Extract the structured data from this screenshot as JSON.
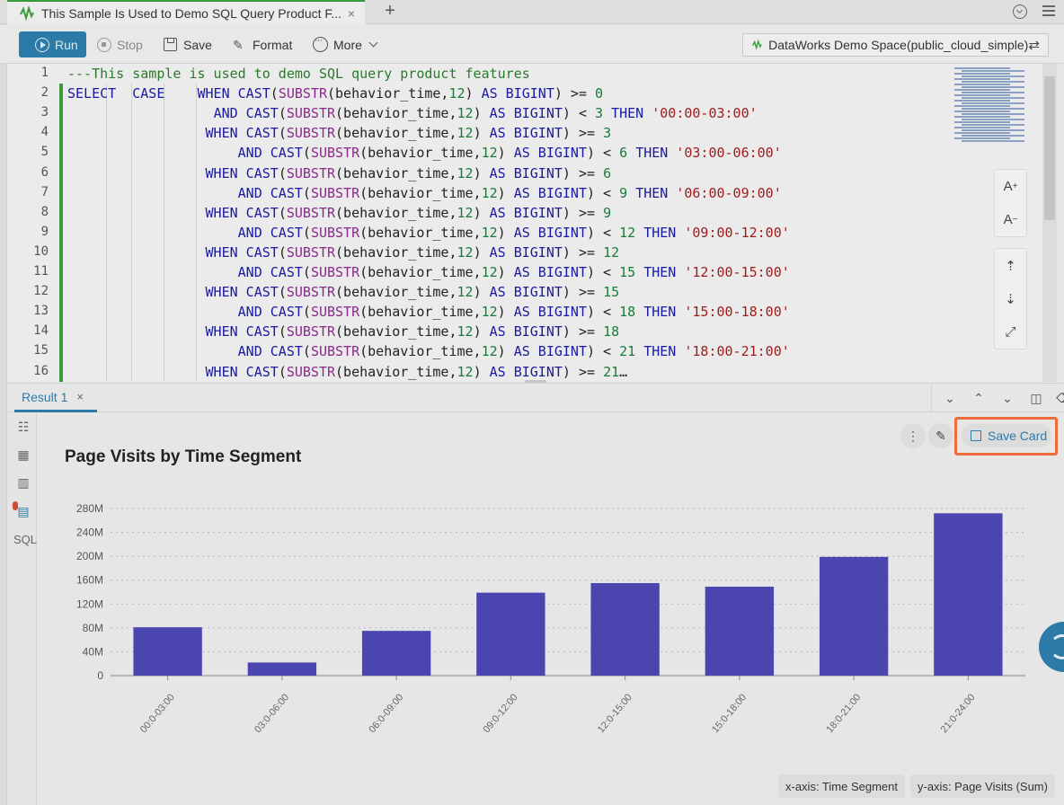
{
  "tab": {
    "title": "This Sample Is Used to Demo SQL Query Product F...",
    "close": "×",
    "add": "+"
  },
  "toolbar": {
    "run": "Run",
    "stop": "Stop",
    "save": "Save",
    "format": "Format",
    "more": "More",
    "workspace": "DataWorks Demo Space(public_cloud_simple)",
    "switch_icon": "⇄"
  },
  "editor": {
    "lines": [
      {
        "n": "1",
        "parts": [
          [
            "cm",
            "---This sample is used to demo SQL query product features"
          ]
        ]
      },
      {
        "n": "2",
        "parts": [
          [
            "kw",
            "SELECT"
          ],
          [
            "",
            "  "
          ],
          [
            "kw",
            "CASE"
          ],
          [
            "",
            "    "
          ],
          [
            "kw",
            "WHEN CAST"
          ],
          [
            "",
            "("
          ],
          [
            "fn",
            "SUBSTR"
          ],
          [
            "",
            "(behavior_time,"
          ],
          [
            "num",
            "12"
          ],
          [
            "",
            ") "
          ],
          [
            "kw",
            "AS BIGINT"
          ],
          [
            "",
            ") >= "
          ],
          [
            "num",
            "0"
          ]
        ]
      },
      {
        "n": "3",
        "parts": [
          [
            "",
            "                  "
          ],
          [
            "kw",
            "AND CAST"
          ],
          [
            "",
            "("
          ],
          [
            "fn",
            "SUBSTR"
          ],
          [
            "",
            "(behavior_time,"
          ],
          [
            "num",
            "12"
          ],
          [
            "",
            ") "
          ],
          [
            "kw",
            "AS BIGINT"
          ],
          [
            "",
            ") < "
          ],
          [
            "num",
            "3"
          ],
          [
            "",
            " "
          ],
          [
            "kw",
            "THEN"
          ],
          [
            "",
            " "
          ],
          [
            "str",
            "'00:00-03:00'"
          ]
        ]
      },
      {
        "n": "4",
        "parts": [
          [
            "",
            "                 "
          ],
          [
            "kw",
            "WHEN CAST"
          ],
          [
            "",
            "("
          ],
          [
            "fn",
            "SUBSTR"
          ],
          [
            "",
            "(behavior_time,"
          ],
          [
            "num",
            "12"
          ],
          [
            "",
            ") "
          ],
          [
            "kw",
            "AS BIGINT"
          ],
          [
            "",
            ") >= "
          ],
          [
            "num",
            "3"
          ]
        ]
      },
      {
        "n": "5",
        "parts": [
          [
            "",
            "                     "
          ],
          [
            "kw",
            "AND CAST"
          ],
          [
            "",
            "("
          ],
          [
            "fn",
            "SUBSTR"
          ],
          [
            "",
            "(behavior_time,"
          ],
          [
            "num",
            "12"
          ],
          [
            "",
            ") "
          ],
          [
            "kw",
            "AS BIGINT"
          ],
          [
            "",
            ") < "
          ],
          [
            "num",
            "6"
          ],
          [
            "",
            " "
          ],
          [
            "kw",
            "THEN"
          ],
          [
            "",
            " "
          ],
          [
            "str",
            "'03:00-06:00'"
          ]
        ]
      },
      {
        "n": "6",
        "parts": [
          [
            "",
            "                 "
          ],
          [
            "kw",
            "WHEN CAST"
          ],
          [
            "",
            "("
          ],
          [
            "fn",
            "SUBSTR"
          ],
          [
            "",
            "(behavior_time,"
          ],
          [
            "num",
            "12"
          ],
          [
            "",
            ") "
          ],
          [
            "kw",
            "AS BIGINT"
          ],
          [
            "",
            ") >= "
          ],
          [
            "num",
            "6"
          ]
        ]
      },
      {
        "n": "7",
        "parts": [
          [
            "",
            "                     "
          ],
          [
            "kw",
            "AND CAST"
          ],
          [
            "",
            "("
          ],
          [
            "fn",
            "SUBSTR"
          ],
          [
            "",
            "(behavior_time,"
          ],
          [
            "num",
            "12"
          ],
          [
            "",
            ") "
          ],
          [
            "kw",
            "AS BIGINT"
          ],
          [
            "",
            ") < "
          ],
          [
            "num",
            "9"
          ],
          [
            "",
            " "
          ],
          [
            "kw",
            "THEN"
          ],
          [
            "",
            " "
          ],
          [
            "str",
            "'06:00-09:00'"
          ]
        ]
      },
      {
        "n": "8",
        "parts": [
          [
            "",
            "                 "
          ],
          [
            "kw",
            "WHEN CAST"
          ],
          [
            "",
            "("
          ],
          [
            "fn",
            "SUBSTR"
          ],
          [
            "",
            "(behavior_time,"
          ],
          [
            "num",
            "12"
          ],
          [
            "",
            ") "
          ],
          [
            "kw",
            "AS BIGINT"
          ],
          [
            "",
            ") >= "
          ],
          [
            "num",
            "9"
          ]
        ]
      },
      {
        "n": "9",
        "parts": [
          [
            "",
            "                     "
          ],
          [
            "kw",
            "AND CAST"
          ],
          [
            "",
            "("
          ],
          [
            "fn",
            "SUBSTR"
          ],
          [
            "",
            "(behavior_time,"
          ],
          [
            "num",
            "12"
          ],
          [
            "",
            ") "
          ],
          [
            "kw",
            "AS BIGINT"
          ],
          [
            "",
            ") < "
          ],
          [
            "num",
            "12"
          ],
          [
            "",
            " "
          ],
          [
            "kw",
            "THEN"
          ],
          [
            "",
            " "
          ],
          [
            "str",
            "'09:00-12:00'"
          ]
        ]
      },
      {
        "n": "10",
        "parts": [
          [
            "",
            "                 "
          ],
          [
            "kw",
            "WHEN CAST"
          ],
          [
            "",
            "("
          ],
          [
            "fn",
            "SUBSTR"
          ],
          [
            "",
            "(behavior_time,"
          ],
          [
            "num",
            "12"
          ],
          [
            "",
            ") "
          ],
          [
            "kw",
            "AS BIGINT"
          ],
          [
            "",
            ") >= "
          ],
          [
            "num",
            "12"
          ]
        ]
      },
      {
        "n": "11",
        "parts": [
          [
            "",
            "                     "
          ],
          [
            "kw",
            "AND CAST"
          ],
          [
            "",
            "("
          ],
          [
            "fn",
            "SUBSTR"
          ],
          [
            "",
            "(behavior_time,"
          ],
          [
            "num",
            "12"
          ],
          [
            "",
            ") "
          ],
          [
            "kw",
            "AS BIGINT"
          ],
          [
            "",
            ") < "
          ],
          [
            "num",
            "15"
          ],
          [
            "",
            " "
          ],
          [
            "kw",
            "THEN"
          ],
          [
            "",
            " "
          ],
          [
            "str",
            "'12:00-15:00'"
          ]
        ]
      },
      {
        "n": "12",
        "parts": [
          [
            "",
            "                 "
          ],
          [
            "kw",
            "WHEN CAST"
          ],
          [
            "",
            "("
          ],
          [
            "fn",
            "SUBSTR"
          ],
          [
            "",
            "(behavior_time,"
          ],
          [
            "num",
            "12"
          ],
          [
            "",
            ") "
          ],
          [
            "kw",
            "AS BIGINT"
          ],
          [
            "",
            ") >= "
          ],
          [
            "num",
            "15"
          ]
        ]
      },
      {
        "n": "13",
        "parts": [
          [
            "",
            "                     "
          ],
          [
            "kw",
            "AND CAST"
          ],
          [
            "",
            "("
          ],
          [
            "fn",
            "SUBSTR"
          ],
          [
            "",
            "(behavior_time,"
          ],
          [
            "num",
            "12"
          ],
          [
            "",
            ") "
          ],
          [
            "kw",
            "AS BIGINT"
          ],
          [
            "",
            ") < "
          ],
          [
            "num",
            "18"
          ],
          [
            "",
            " "
          ],
          [
            "kw",
            "THEN"
          ],
          [
            "",
            " "
          ],
          [
            "str",
            "'15:00-18:00'"
          ]
        ]
      },
      {
        "n": "14",
        "parts": [
          [
            "",
            "                 "
          ],
          [
            "kw",
            "WHEN CAST"
          ],
          [
            "",
            "("
          ],
          [
            "fn",
            "SUBSTR"
          ],
          [
            "",
            "(behavior_time,"
          ],
          [
            "num",
            "12"
          ],
          [
            "",
            ") "
          ],
          [
            "kw",
            "AS BIGINT"
          ],
          [
            "",
            ") >= "
          ],
          [
            "num",
            "18"
          ]
        ]
      },
      {
        "n": "15",
        "parts": [
          [
            "",
            "                     "
          ],
          [
            "kw",
            "AND CAST"
          ],
          [
            "",
            "("
          ],
          [
            "fn",
            "SUBSTR"
          ],
          [
            "",
            "(behavior_time,"
          ],
          [
            "num",
            "12"
          ],
          [
            "",
            ") "
          ],
          [
            "kw",
            "AS BIGINT"
          ],
          [
            "",
            ") < "
          ],
          [
            "num",
            "21"
          ],
          [
            "",
            " "
          ],
          [
            "kw",
            "THEN"
          ],
          [
            "",
            " "
          ],
          [
            "str",
            "'18:00-21:00'"
          ]
        ]
      },
      {
        "n": "16",
        "parts": [
          [
            "",
            "                 "
          ],
          [
            "kw",
            "WHEN CAST"
          ],
          [
            "",
            "("
          ],
          [
            "fn",
            "SUBSTR"
          ],
          [
            "",
            "(behavior_time,"
          ],
          [
            "num",
            "12"
          ],
          [
            "",
            ") "
          ],
          [
            "kw",
            "AS BIGINT"
          ],
          [
            "",
            ") >= "
          ],
          [
            "num",
            "21"
          ],
          [
            "",
            "…"
          ]
        ]
      }
    ],
    "font_inc": "A",
    "font_dec": "A"
  },
  "result": {
    "tab_label": "Result 1",
    "tab_close": "×",
    "save_card": "Save Card"
  },
  "chart_data": {
    "type": "bar",
    "title": "Page Visits by Time Segment",
    "categories": [
      "00:0-03:00",
      "03:0-06:00",
      "06:0-09:00",
      "09:0-12:00",
      "12:0-15:00",
      "15:0-18:00",
      "18:0-21:00",
      "21:0-24:00"
    ],
    "values": [
      81,
      22,
      75,
      139,
      155,
      149,
      199,
      272
    ],
    "unit": "M",
    "yticks": [
      "0",
      "40M",
      "80M",
      "120M",
      "160M",
      "200M",
      "240M",
      "280M"
    ],
    "ylim": [
      0,
      280
    ],
    "grid": true,
    "bar_color": "#4b45b0"
  },
  "axis_chips": {
    "x": "x-axis: Time Segment",
    "y": "y-axis: Page Visits (Sum)"
  }
}
